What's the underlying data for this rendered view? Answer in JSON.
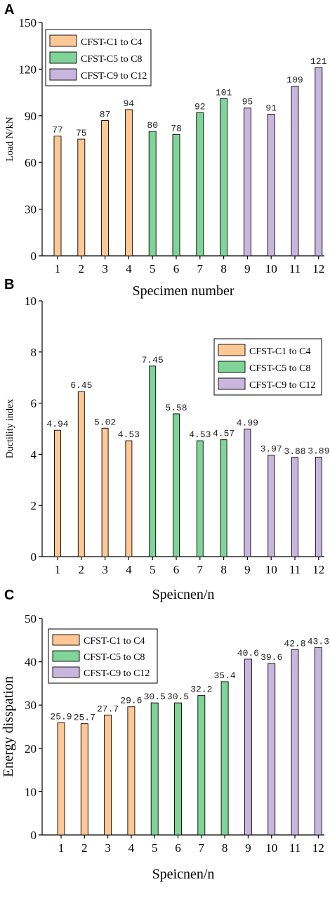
{
  "colors": {
    "group1": "#FDC894",
    "group2": "#7FD497",
    "group3": "#C8B6DF",
    "edge": "#000000"
  },
  "chart_data": [
    {
      "type": "bar",
      "panel": "A",
      "categories": [
        "1",
        "2",
        "3",
        "4",
        "5",
        "6",
        "7",
        "8",
        "9",
        "10",
        "11",
        "12"
      ],
      "values": [
        77,
        75,
        87,
        94,
        80,
        78,
        92,
        101,
        95,
        91,
        109,
        121
      ],
      "value_labels": [
        "77",
        "75",
        "87",
        "94",
        "80",
        "78",
        "92",
        "101",
        "95",
        "91",
        "109",
        "121"
      ],
      "groups": [
        0,
        0,
        0,
        0,
        1,
        1,
        1,
        1,
        2,
        2,
        2,
        2
      ],
      "legend": [
        "CFST-C1 to C4",
        "CFST-C5 to C8",
        "CFST-C9 to C12"
      ],
      "legend_position": "top-left",
      "xlabel": "Specimen number",
      "ylabel": "Load N/kN",
      "ylim": [
        0,
        150
      ],
      "yticks": [
        0,
        30,
        60,
        90,
        120,
        150
      ],
      "ytick_labels": [
        "0",
        "30",
        "60",
        "90",
        "120",
        "150"
      ]
    },
    {
      "type": "bar",
      "panel": "B",
      "categories": [
        "1",
        "2",
        "3",
        "4",
        "5",
        "6",
        "7",
        "8",
        "9",
        "10",
        "11",
        "12"
      ],
      "values": [
        4.94,
        6.45,
        5.02,
        4.53,
        7.45,
        5.58,
        4.53,
        4.57,
        4.99,
        3.97,
        3.88,
        3.89
      ],
      "value_labels": [
        "4.94",
        "6.45",
        "5.02",
        "4.53",
        "7.45",
        "5.58",
        "4.53",
        "4.57",
        "4.99",
        "3.97",
        "3.88",
        "3.89"
      ],
      "groups": [
        0,
        0,
        0,
        0,
        1,
        1,
        1,
        1,
        2,
        2,
        2,
        2
      ],
      "legend": [
        "CFST-C1 to C4",
        "CFST-C5 to C8",
        "CFST-C9 to C12"
      ],
      "legend_position": "top-right",
      "xlabel": "Speicnen/n",
      "ylabel": "Ductility index",
      "ylim": [
        0,
        10
      ],
      "yticks": [
        0,
        2,
        4,
        6,
        8,
        10
      ],
      "ytick_labels": [
        "0",
        "2",
        "4",
        "6",
        "8",
        "10"
      ]
    },
    {
      "type": "bar",
      "panel": "C",
      "categories": [
        "1",
        "2",
        "3",
        "4",
        "5",
        "6",
        "7",
        "8",
        "9",
        "10",
        "11",
        "12"
      ],
      "values": [
        25.9,
        25.7,
        27.7,
        29.6,
        30.5,
        30.5,
        32.2,
        35.4,
        40.6,
        39.6,
        42.8,
        43.3
      ],
      "value_labels": [
        "25.9",
        "25.7",
        "27.7",
        "29.6",
        "30.5",
        "30.5",
        "32.2",
        "35.4",
        "40.6",
        "39.6",
        "42.8",
        "43.3"
      ],
      "groups": [
        0,
        0,
        0,
        0,
        1,
        1,
        1,
        1,
        2,
        2,
        2,
        2
      ],
      "legend": [
        "CFST-C1 to C4",
        "CFST-C5 to C8",
        "CFST-C9 to C12"
      ],
      "legend_position": "top-left",
      "xlabel": "Speicnen/n",
      "ylabel": "Energy disspation",
      "ylim": [
        0,
        50
      ],
      "yticks": [
        0,
        10,
        20,
        30,
        40,
        50
      ],
      "ytick_labels": [
        "0",
        "10",
        "20",
        "30",
        "40",
        "50"
      ]
    }
  ]
}
